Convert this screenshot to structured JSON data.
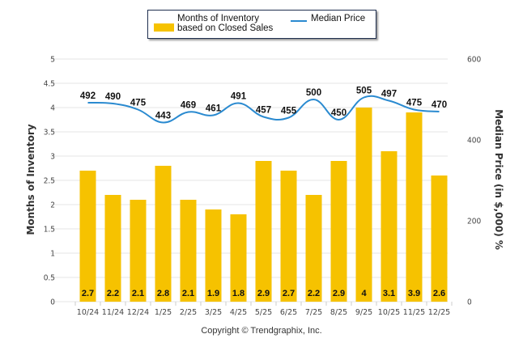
{
  "legend": {
    "bars_label": "Months of Inventory based on Closed Sales",
    "line_label": "Median Price"
  },
  "colors": {
    "bar": "#f6c200",
    "line": "#2a8ad0",
    "grid": "#e6e6e6"
  },
  "copyright": "Copyright © Trendgraphix, Inc.",
  "chart_data": {
    "type": "bar",
    "title": "",
    "categories": [
      "10/24",
      "11/24",
      "12/24",
      "1/25",
      "2/25",
      "3/25",
      "4/25",
      "5/25",
      "6/25",
      "7/25",
      "8/25",
      "9/25",
      "10/25",
      "11/25",
      "12/25"
    ],
    "series": [
      {
        "name": "Months of Inventory based on Closed Sales",
        "type": "bar",
        "axis": "left",
        "values": [
          2.7,
          2.2,
          2.1,
          2.8,
          2.1,
          1.9,
          1.8,
          2.9,
          2.7,
          2.2,
          2.9,
          4,
          3.1,
          3.9,
          2.6
        ]
      },
      {
        "name": "Median Price",
        "type": "line",
        "axis": "right",
        "values": [
          492,
          490,
          475,
          443,
          469,
          461,
          491,
          457,
          455,
          500,
          450,
          505,
          497,
          475,
          470
        ]
      }
    ],
    "ylabel": "Months of Inventory",
    "ylim": [
      0,
      5
    ],
    "yticks": [
      "0",
      "0.5",
      "1",
      "1.5",
      "2",
      "2.5",
      "3",
      "3.5",
      "4",
      "4.5",
      "5"
    ],
    "y2label": "Median Price (in $,000) %",
    "y2lim": [
      0,
      600
    ],
    "y2ticks": [
      "0",
      "200",
      "400",
      "600"
    ],
    "grid": true,
    "legend_position": "top-center"
  }
}
